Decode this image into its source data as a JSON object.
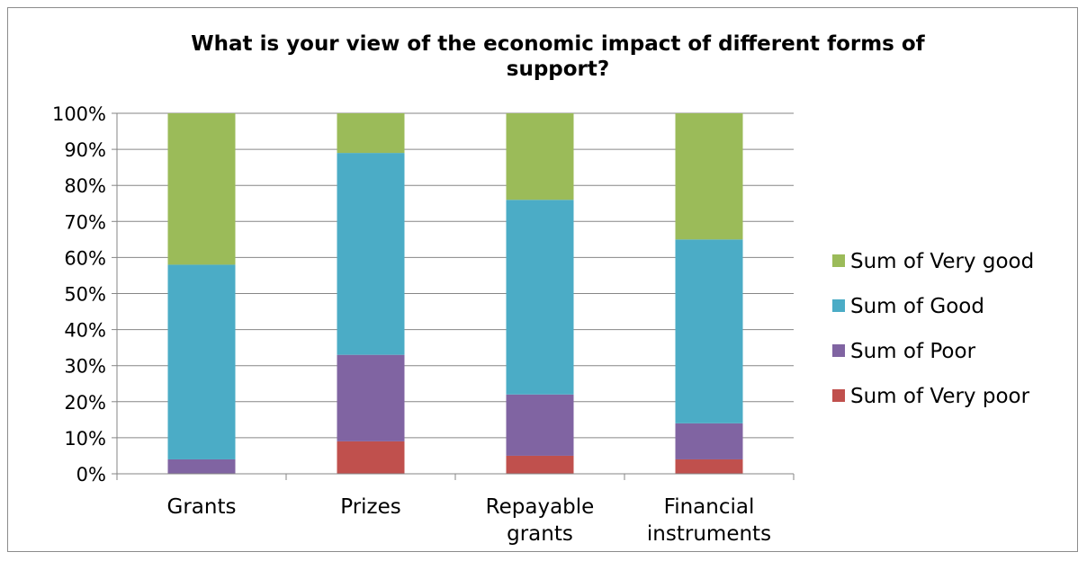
{
  "chart_data": {
    "type": "bar",
    "stacked": "percent",
    "title_lines": [
      "What is your view of the economic impact of different forms of",
      "support?"
    ],
    "categories": [
      [
        "Grants"
      ],
      [
        "Prizes"
      ],
      [
        "Repayable",
        "grants"
      ],
      [
        "Financial",
        "instruments"
      ]
    ],
    "series": [
      {
        "name": "Sum of Very poor",
        "color": "#c0504d",
        "values": [
          0,
          9,
          5,
          4
        ]
      },
      {
        "name": "Sum of Poor",
        "color": "#8064a2",
        "values": [
          4,
          24,
          17,
          10
        ]
      },
      {
        "name": "Sum of Good",
        "color": "#4bacc6",
        "values": [
          54,
          56,
          54,
          51
        ]
      },
      {
        "name": "Sum of Very good",
        "color": "#9bbb59",
        "values": [
          42,
          11,
          24,
          35
        ]
      }
    ],
    "ylim": [
      0,
      100
    ],
    "y_ticks": [
      "0%",
      "10%",
      "20%",
      "30%",
      "40%",
      "50%",
      "60%",
      "70%",
      "80%",
      "90%",
      "100%"
    ],
    "grid": true,
    "legend_position": "right"
  }
}
